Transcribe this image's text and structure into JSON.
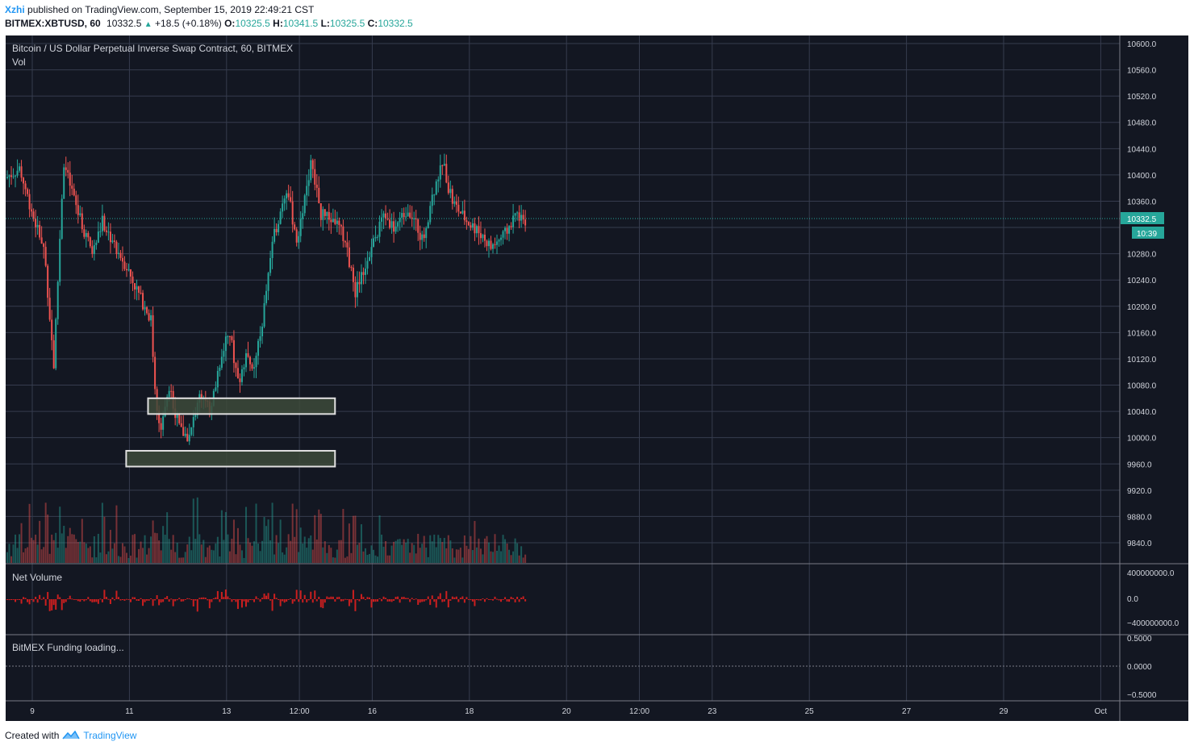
{
  "header": {
    "author": "Xzhi",
    "published_text": "published on TradingView.com, September 15, 2019 22:49:21 CST",
    "symbol": "BITMEX:XBTUSD, 60",
    "last": "10332.5",
    "change": "+18.5 (+0.18%)",
    "open_label": "O:",
    "open": "10325.5",
    "high_label": "H:",
    "high": "10341.5",
    "low_label": "L:",
    "low": "10325.5",
    "close_label": "C:",
    "close": "10332.5"
  },
  "panes": {
    "main_title": "Bitcoin / US Dollar Perpetual Inverse Swap Contract, 60, BITMEX",
    "vol_label": "Vol",
    "net_volume_label": "Net Volume",
    "funding_label": "BitMEX Funding loading...",
    "price_badge": "10332.5",
    "countdown_badge": "10:39"
  },
  "footer": {
    "created_with": "Created with",
    "brand": "TradingView"
  },
  "colors": {
    "background": "#131722",
    "grid": "#363c4e",
    "up": "#26a69a",
    "down": "#ef5350",
    "net_volume": "#cc1f1f",
    "box_fill": "#3d4a3a",
    "box_stroke": "#e0e0e0"
  },
  "chart_data": {
    "type": "candlestick",
    "title": "Bitcoin / US Dollar Perpetual Inverse Swap Contract, 60, BITMEX",
    "price_axis": {
      "ticks": [
        10600,
        10560,
        10520,
        10480,
        10440,
        10400,
        10360,
        10280,
        10240,
        10200,
        10160,
        10120,
        10080,
        10040,
        10000,
        9960,
        9920,
        9880,
        9840
      ],
      "tick_labels": [
        "10600.0",
        "10560.0",
        "10520.0",
        "10480.0",
        "10440.0",
        "10400.0",
        "10360.0",
        "10280.0",
        "10240.0",
        "10200.0",
        "10160.0",
        "10120.0",
        "10080.0",
        "10040.0",
        "10000.0",
        "9960.0",
        "9920.0",
        "9880.0",
        "9840.0"
      ],
      "ylim": [
        9810,
        10620
      ]
    },
    "time_axis": {
      "tick_labels": [
        "9",
        "11",
        "13",
        "12:00",
        "16",
        "18",
        "20",
        "12:00",
        "23",
        "25",
        "27",
        "29",
        "Oct"
      ],
      "tick_day_offsets": [
        0,
        2,
        4,
        5.5,
        7,
        9,
        11,
        12.5,
        14,
        16,
        18,
        20,
        22
      ]
    },
    "last_price": 10332.5,
    "price_path": [
      [
        0,
        10395
      ],
      [
        0.3,
        10410
      ],
      [
        0.6,
        10330
      ],
      [
        0.8,
        10290
      ],
      [
        1.0,
        10110
      ],
      [
        1.2,
        10420
      ],
      [
        1.5,
        10340
      ],
      [
        1.8,
        10280
      ],
      [
        2.0,
        10330
      ],
      [
        2.2,
        10300
      ],
      [
        2.5,
        10260
      ],
      [
        2.8,
        10210
      ],
      [
        3.0,
        10180
      ],
      [
        3.1,
        10050
      ],
      [
        3.2,
        10020
      ],
      [
        3.4,
        10070
      ],
      [
        3.6,
        10010
      ],
      [
        3.8,
        10000
      ],
      [
        4.0,
        10070
      ],
      [
        4.2,
        10040
      ],
      [
        4.4,
        10100
      ],
      [
        4.6,
        10170
      ],
      [
        4.8,
        10080
      ],
      [
        5.0,
        10130
      ],
      [
        5.1,
        10090
      ],
      [
        5.3,
        10180
      ],
      [
        5.5,
        10300
      ],
      [
        5.8,
        10380
      ],
      [
        6.0,
        10300
      ],
      [
        6.3,
        10420
      ],
      [
        6.5,
        10340
      ],
      [
        6.8,
        10330
      ],
      [
        7.0,
        10300
      ],
      [
        7.2,
        10220
      ],
      [
        7.4,
        10260
      ],
      [
        7.6,
        10300
      ],
      [
        7.8,
        10340
      ],
      [
        8.0,
        10320
      ],
      [
        8.3,
        10350
      ],
      [
        8.6,
        10300
      ],
      [
        8.8,
        10370
      ],
      [
        9.0,
        10420
      ],
      [
        9.2,
        10360
      ],
      [
        9.5,
        10330
      ],
      [
        9.8,
        10310
      ],
      [
        10.0,
        10290
      ],
      [
        10.3,
        10310
      ],
      [
        10.5,
        10340
      ],
      [
        10.7,
        10332.5
      ]
    ],
    "zones": [
      {
        "label": "",
        "from_day": 2.45,
        "to_day": 6.3,
        "low": 10036,
        "high": 10060
      },
      {
        "label": "",
        "from_day": 2.0,
        "to_day": 6.3,
        "low": 9956,
        "high": 9980
      }
    ],
    "net_volume_axis": {
      "tick_labels": [
        "400000000.0",
        "0.0",
        "−400000000.0"
      ]
    },
    "funding_axis": {
      "tick_labels": [
        "0.5000",
        "0.0000",
        "−0.5000"
      ]
    }
  }
}
